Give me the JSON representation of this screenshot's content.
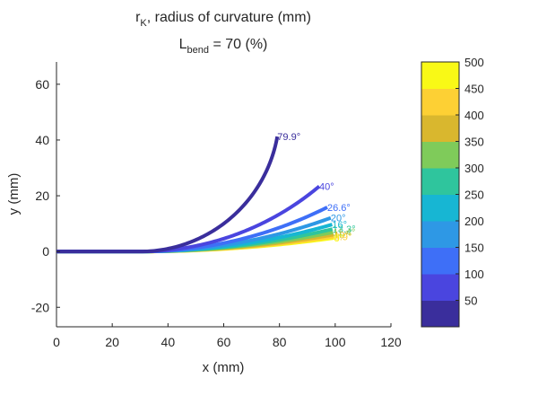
{
  "chart_data": {
    "type": "line",
    "title": {
      "line1_main": "r",
      "line1_sub": "K",
      "line1_rest": ", radius of curvature (mm)",
      "line2_main": "L",
      "line2_sub": "bend",
      "line2_rest": " = 70 (%)"
    },
    "xlabel": "x (mm)",
    "ylabel": "y (mm)",
    "xlim": [
      0,
      120
    ],
    "ylim": [
      -27,
      68
    ],
    "xticks": [
      "0",
      "20",
      "40",
      "60",
      "80",
      "100",
      "120"
    ],
    "yticks": [
      "-20",
      "0",
      "20",
      "40",
      "60"
    ],
    "grid": false,
    "colorbar": {
      "range": [
        0,
        500
      ],
      "ticks": [
        "50",
        "100",
        "150",
        "200",
        "250",
        "300",
        "350",
        "400",
        "450",
        "500"
      ],
      "colors": [
        "#3a2e9c",
        "#4a45df",
        "#3e6ff7",
        "#2e98e5",
        "#17b6d3",
        "#2fc59d",
        "#7fcb5a",
        "#d9b72e",
        "#fdd034",
        "#f9f916"
      ]
    },
    "series": [
      {
        "radius": 50,
        "angle": 79.9,
        "label": "79.9°",
        "color": "#3a2e9c"
      },
      {
        "radius": 100,
        "angle": 40,
        "label": "40°",
        "color": "#4a45df"
      },
      {
        "radius": 150,
        "angle": 26.6,
        "label": "26.6°",
        "color": "#3e6ff7"
      },
      {
        "radius": 200,
        "angle": 20,
        "label": "20°",
        "color": "#2e98e5"
      },
      {
        "radius": 250,
        "angle": 16,
        "label": "16°",
        "color": "#17b6d3"
      },
      {
        "radius": 300,
        "angle": 13.3,
        "label": "13.3°",
        "color": "#2fc59d"
      },
      {
        "radius": 350,
        "angle": 11.4,
        "label": "11.4°",
        "color": "#7fcb5a"
      },
      {
        "radius": 400,
        "angle": 10,
        "label": "10°",
        "color": "#d9b72e"
      },
      {
        "radius": 450,
        "angle": 8.9,
        "label": "8.9°",
        "color": "#fdd034"
      },
      {
        "radius": 500,
        "angle": 8,
        "label": "8°",
        "color": "#f9f916"
      }
    ]
  }
}
